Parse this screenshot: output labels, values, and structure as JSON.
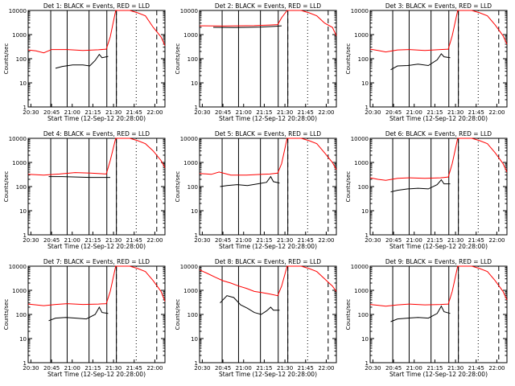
{
  "chart_data": [
    {
      "type": "line",
      "title": "Det 1: BLACK = Events, RED = LLD",
      "black": [
        [
          0.2,
          40
        ],
        [
          0.3,
          48
        ],
        [
          0.45,
          55
        ],
        [
          0.6,
          55
        ],
        [
          0.7,
          50
        ],
        [
          0.78,
          85
        ],
        [
          0.84,
          150
        ],
        [
          0.88,
          110
        ],
        [
          0.97,
          125
        ]
      ],
      "black_x": [
        0.05,
        1.0
      ],
      "red": [
        [
          0.0,
          230
        ],
        [
          0.1,
          210
        ],
        [
          0.2,
          175
        ],
        [
          0.3,
          240
        ],
        [
          0.5,
          240
        ],
        [
          0.7,
          220
        ],
        [
          0.9,
          235
        ],
        [
          1.0,
          250
        ],
        [
          1.05,
          800
        ],
        [
          1.12,
          10000
        ],
        [
          1.3,
          10000
        ],
        [
          1.4,
          8000
        ],
        [
          1.5,
          6000
        ],
        [
          1.6,
          2000
        ],
        [
          1.7,
          800
        ],
        [
          1.75,
          350
        ]
      ]
    },
    {
      "type": "line",
      "title": "Det 2: BLACK = Events, RED = LLD",
      "black": [
        [
          0.0,
          2000
        ],
        [
          0.3,
          1950
        ],
        [
          0.5,
          2000
        ],
        [
          0.7,
          2050
        ],
        [
          0.9,
          2200
        ],
        [
          1.0,
          2300
        ]
      ],
      "black_x": [
        0.05,
        1.0
      ],
      "red": [
        [
          0.0,
          2300
        ],
        [
          0.3,
          2250
        ],
        [
          0.5,
          2300
        ],
        [
          0.7,
          2350
        ],
        [
          0.9,
          2500
        ],
        [
          1.0,
          2600
        ],
        [
          1.05,
          5000
        ],
        [
          1.12,
          10000
        ],
        [
          1.3,
          10000
        ],
        [
          1.4,
          8000
        ],
        [
          1.5,
          6000
        ],
        [
          1.6,
          3000
        ],
        [
          1.7,
          2000
        ],
        [
          1.75,
          900
        ]
      ]
    },
    {
      "type": "line",
      "title": "Det 3: BLACK = Events, RED = LLD",
      "black": [
        [
          0.1,
          35
        ],
        [
          0.2,
          50
        ],
        [
          0.35,
          52
        ],
        [
          0.5,
          60
        ],
        [
          0.65,
          52
        ],
        [
          0.78,
          90
        ],
        [
          0.84,
          160
        ],
        [
          0.88,
          120
        ],
        [
          0.97,
          110
        ]
      ],
      "black_x": [
        0.05,
        1.0
      ],
      "red": [
        [
          0.0,
          250
        ],
        [
          0.1,
          220
        ],
        [
          0.2,
          190
        ],
        [
          0.35,
          230
        ],
        [
          0.5,
          240
        ],
        [
          0.7,
          220
        ],
        [
          0.9,
          240
        ],
        [
          1.0,
          250
        ],
        [
          1.05,
          900
        ],
        [
          1.12,
          10000
        ],
        [
          1.3,
          10000
        ],
        [
          1.4,
          8000
        ],
        [
          1.5,
          6000
        ],
        [
          1.6,
          2500
        ],
        [
          1.7,
          900
        ],
        [
          1.75,
          400
        ]
      ]
    },
    {
      "type": "line",
      "title": "Det 4: BLACK = Events, RED = LLD",
      "black": [
        [
          0.1,
          260
        ],
        [
          0.3,
          260
        ],
        [
          0.5,
          250
        ],
        [
          0.7,
          240
        ],
        [
          0.9,
          240
        ],
        [
          1.0,
          240
        ]
      ],
      "black_x": [
        0.05,
        1.0
      ],
      "red": [
        [
          0.0,
          320
        ],
        [
          0.2,
          300
        ],
        [
          0.4,
          330
        ],
        [
          0.6,
          380
        ],
        [
          0.8,
          360
        ],
        [
          1.0,
          330
        ],
        [
          1.05,
          1200
        ],
        [
          1.12,
          10000
        ],
        [
          1.3,
          10000
        ],
        [
          1.4,
          8000
        ],
        [
          1.5,
          6000
        ],
        [
          1.6,
          3000
        ],
        [
          1.7,
          1200
        ],
        [
          1.75,
          600
        ]
      ]
    },
    {
      "type": "line",
      "title": "Det 5: BLACK = Events, RED = LLD",
      "black": [
        [
          0.1,
          100
        ],
        [
          0.2,
          110
        ],
        [
          0.35,
          120
        ],
        [
          0.5,
          110
        ],
        [
          0.65,
          130
        ],
        [
          0.78,
          150
        ],
        [
          0.84,
          260
        ],
        [
          0.88,
          160
        ],
        [
          0.97,
          140
        ]
      ],
      "black_x": [
        0.05,
        1.0
      ],
      "red": [
        [
          0.0,
          350
        ],
        [
          0.15,
          320
        ],
        [
          0.25,
          400
        ],
        [
          0.4,
          300
        ],
        [
          0.6,
          300
        ],
        [
          0.8,
          320
        ],
        [
          0.9,
          330
        ],
        [
          1.0,
          360
        ],
        [
          1.05,
          900
        ],
        [
          1.12,
          10000
        ],
        [
          1.3,
          10000
        ],
        [
          1.4,
          8000
        ],
        [
          1.5,
          6000
        ],
        [
          1.6,
          2500
        ],
        [
          1.7,
          1000
        ],
        [
          1.75,
          500
        ]
      ]
    },
    {
      "type": "line",
      "title": "Det 6: BLACK = Events, RED = LLD",
      "black": [
        [
          0.1,
          60
        ],
        [
          0.2,
          70
        ],
        [
          0.35,
          80
        ],
        [
          0.5,
          85
        ],
        [
          0.65,
          80
        ],
        [
          0.78,
          120
        ],
        [
          0.84,
          190
        ],
        [
          0.88,
          130
        ],
        [
          0.97,
          130
        ]
      ],
      "black_x": [
        0.05,
        1.0
      ],
      "red": [
        [
          0.0,
          230
        ],
        [
          0.1,
          200
        ],
        [
          0.2,
          180
        ],
        [
          0.35,
          220
        ],
        [
          0.5,
          230
        ],
        [
          0.7,
          220
        ],
        [
          0.9,
          230
        ],
        [
          1.0,
          250
        ],
        [
          1.05,
          900
        ],
        [
          1.12,
          10000
        ],
        [
          1.3,
          10000
        ],
        [
          1.4,
          8000
        ],
        [
          1.5,
          6000
        ],
        [
          1.6,
          2500
        ],
        [
          1.7,
          900
        ],
        [
          1.75,
          400
        ]
      ]
    },
    {
      "type": "line",
      "title": "Det 7: BLACK = Events, RED = LLD",
      "black": [
        [
          0.1,
          55
        ],
        [
          0.2,
          70
        ],
        [
          0.35,
          75
        ],
        [
          0.5,
          70
        ],
        [
          0.65,
          65
        ],
        [
          0.78,
          100
        ],
        [
          0.84,
          200
        ],
        [
          0.88,
          120
        ],
        [
          0.97,
          110
        ]
      ],
      "black_x": [
        0.05,
        1.0
      ],
      "red": [
        [
          0.0,
          270
        ],
        [
          0.1,
          250
        ],
        [
          0.2,
          230
        ],
        [
          0.35,
          260
        ],
        [
          0.5,
          280
        ],
        [
          0.7,
          260
        ],
        [
          0.9,
          270
        ],
        [
          1.0,
          280
        ],
        [
          1.05,
          900
        ],
        [
          1.12,
          10000
        ],
        [
          1.3,
          10000
        ],
        [
          1.4,
          8000
        ],
        [
          1.5,
          6000
        ],
        [
          1.6,
          2500
        ],
        [
          1.7,
          900
        ],
        [
          1.75,
          350
        ]
      ]
    },
    {
      "type": "line",
      "title": "Det 8: BLACK = Events, RED = LLD",
      "black": [
        [
          0.1,
          300
        ],
        [
          0.2,
          600
        ],
        [
          0.3,
          500
        ],
        [
          0.4,
          250
        ],
        [
          0.5,
          180
        ],
        [
          0.6,
          120
        ],
        [
          0.7,
          100
        ],
        [
          0.78,
          140
        ],
        [
          0.84,
          200
        ],
        [
          0.88,
          150
        ],
        [
          0.97,
          150
        ]
      ],
      "black_x": [
        0.05,
        1.0
      ],
      "red": [
        [
          0.0,
          7000
        ],
        [
          0.1,
          5000
        ],
        [
          0.2,
          3500
        ],
        [
          0.3,
          2500
        ],
        [
          0.4,
          2000
        ],
        [
          0.5,
          1500
        ],
        [
          0.6,
          1200
        ],
        [
          0.7,
          900
        ],
        [
          0.8,
          800
        ],
        [
          0.9,
          700
        ],
        [
          1.0,
          600
        ],
        [
          1.05,
          1500
        ],
        [
          1.12,
          10000
        ],
        [
          1.3,
          10000
        ],
        [
          1.4,
          8000
        ],
        [
          1.5,
          6000
        ],
        [
          1.6,
          3000
        ],
        [
          1.7,
          1500
        ],
        [
          1.75,
          900
        ]
      ]
    },
    {
      "type": "line",
      "title": "Det 9: BLACK = Events, RED = LLD",
      "black": [
        [
          0.1,
          50
        ],
        [
          0.2,
          65
        ],
        [
          0.35,
          70
        ],
        [
          0.5,
          75
        ],
        [
          0.65,
          70
        ],
        [
          0.78,
          110
        ],
        [
          0.84,
          220
        ],
        [
          0.88,
          130
        ],
        [
          0.97,
          110
        ]
      ],
      "black_x": [
        0.05,
        1.0
      ],
      "red": [
        [
          0.0,
          260
        ],
        [
          0.1,
          240
        ],
        [
          0.2,
          220
        ],
        [
          0.35,
          250
        ],
        [
          0.5,
          270
        ],
        [
          0.7,
          250
        ],
        [
          0.9,
          260
        ],
        [
          1.0,
          270
        ],
        [
          1.05,
          900
        ],
        [
          1.12,
          10000
        ],
        [
          1.3,
          10000
        ],
        [
          1.4,
          8000
        ],
        [
          1.5,
          6000
        ],
        [
          1.6,
          2500
        ],
        [
          1.7,
          900
        ],
        [
          1.75,
          400
        ]
      ]
    }
  ],
  "common": {
    "ylabel": "Counts/sec",
    "xlabel": "Start Time (12-Sep-12 20:28:00)",
    "yticks": [
      "1",
      "10",
      "100",
      "1000",
      "10000"
    ],
    "xticks": [
      "20:30",
      "20:45",
      "21:00",
      "21:15",
      "21:30",
      "21:45",
      "22:00"
    ],
    "black_color": "#000000",
    "red_color": "#ff0000"
  }
}
